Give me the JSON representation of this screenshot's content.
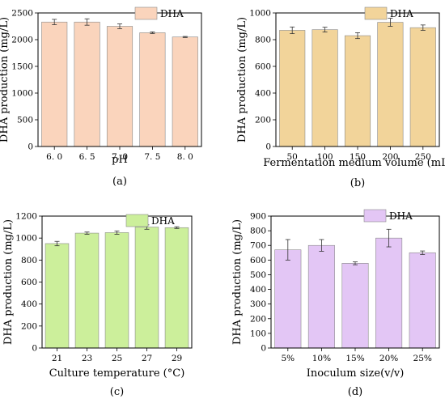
{
  "chart_data": [
    {
      "type": "bar",
      "panel_label": "(a)",
      "categories": [
        "6. 0",
        "6. 5",
        "7. 0",
        "7. 5",
        "8. 0"
      ],
      "series": [
        {
          "name": "DHA",
          "values": [
            2330,
            2330,
            2250,
            2130,
            2050
          ],
          "errors": [
            50,
            60,
            45,
            15,
            10
          ],
          "color": "#fad4bc"
        }
      ],
      "xlabel": "pH",
      "ylabel": "DHA production (mg/L)",
      "ylim": [
        0,
        2500
      ],
      "yticks": [
        "0",
        "500",
        "1000",
        "1500",
        "2000",
        "2500"
      ],
      "legend": "top-right"
    },
    {
      "type": "bar",
      "panel_label": "(b)",
      "categories": [
        "50",
        "100",
        "150",
        "200",
        "250"
      ],
      "series": [
        {
          "name": "DHA",
          "values": [
            870,
            875,
            830,
            930,
            890
          ],
          "errors": [
            25,
            18,
            22,
            30,
            20
          ],
          "color": "#f2d49a"
        }
      ],
      "xlabel": "Fermentation medium volume (mL)",
      "ylabel": "DHA production (mg/L)",
      "ylim": [
        0,
        1000
      ],
      "yticks": [
        "0",
        "200",
        "400",
        "600",
        "800",
        "1000"
      ],
      "legend": "top-right"
    },
    {
      "type": "bar",
      "panel_label": "(c)",
      "categories": [
        "21",
        "23",
        "25",
        "27",
        "29"
      ],
      "series": [
        {
          "name": "DHA",
          "values": [
            950,
            1045,
            1050,
            1100,
            1095
          ],
          "errors": [
            20,
            10,
            15,
            20,
            8
          ],
          "color": "#ccef9b"
        }
      ],
      "xlabel": "Culture temperature (°C)",
      "ylabel": "DHA production (mg/L)",
      "ylim": [
        0,
        1200
      ],
      "yticks": [
        "0",
        "200",
        "400",
        "600",
        "800",
        "1000",
        "1200"
      ],
      "ytick_labels": [
        "0",
        "200",
        "400",
        "600",
        "800",
        "1000",
        "1200"
      ],
      "legend": "top-right"
    },
    {
      "type": "bar",
      "panel_label": "(d)",
      "categories": [
        "5%",
        "10%",
        "15%",
        "20%",
        "25%"
      ],
      "series": [
        {
          "name": "DHA",
          "values": [
            670,
            700,
            578,
            750,
            650
          ],
          "errors": [
            70,
            40,
            10,
            60,
            12
          ],
          "color": "#e3c6f5"
        }
      ],
      "xlabel": "Inoculum size(v/v)",
      "ylabel": "DHA production (mg/L)",
      "ylim": [
        0,
        900
      ],
      "yticks": [
        "0",
        "100",
        "200",
        "300",
        "400",
        "500",
        "600",
        "700",
        "800",
        "900"
      ],
      "legend": "top-right"
    }
  ]
}
